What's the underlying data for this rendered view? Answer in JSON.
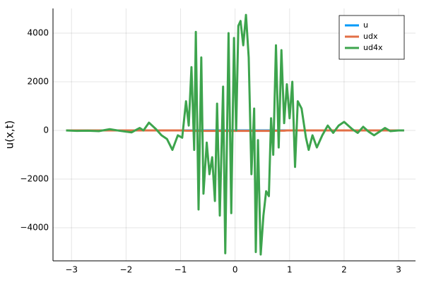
{
  "chart_data": {
    "type": "line",
    "ylabel": "u(x,t)",
    "x": [
      -3.1,
      -2.9,
      -2.7,
      -2.5,
      -2.3,
      -2.1,
      -1.9,
      -1.75,
      -1.68,
      -1.58,
      -1.45,
      -1.35,
      -1.25,
      -1.15,
      -1.05,
      -0.97,
      -0.9,
      -0.85,
      -0.8,
      -0.75,
      -0.72,
      -0.67,
      -0.62,
      -0.58,
      -0.52,
      -0.47,
      -0.42,
      -0.37,
      -0.33,
      -0.28,
      -0.22,
      -0.18,
      -0.12,
      -0.07,
      -0.02,
      0.02,
      0.06,
      0.1,
      0.15,
      0.2,
      0.25,
      0.3,
      0.35,
      0.38,
      0.42,
      0.47,
      0.52,
      0.57,
      0.62,
      0.66,
      0.7,
      0.75,
      0.8,
      0.85,
      0.9,
      0.95,
      1.0,
      1.05,
      1.1,
      1.15,
      1.22,
      1.3,
      1.35,
      1.42,
      1.5,
      1.6,
      1.7,
      1.8,
      1.9,
      2.0,
      2.15,
      2.25,
      2.35,
      2.45,
      2.55,
      2.65,
      2.75,
      2.85,
      3.0,
      3.1
    ],
    "series": [
      {
        "name": "u",
        "color": "#009af9",
        "values": [
          0,
          0,
          0,
          0,
          0,
          0,
          0,
          0,
          0,
          0,
          0,
          0,
          0,
          0,
          0,
          0,
          0,
          0,
          0,
          0,
          0,
          0,
          0,
          0,
          0,
          0,
          0,
          0,
          0,
          0,
          0,
          0,
          0,
          0,
          0,
          0,
          0,
          0,
          0,
          0,
          0,
          0,
          0,
          0,
          0,
          0,
          0,
          0,
          0,
          0,
          0,
          0,
          0,
          0,
          0,
          0,
          0,
          0,
          0,
          0,
          0,
          0,
          0,
          0,
          0,
          0,
          0,
          0,
          0,
          0,
          0,
          0,
          0,
          0,
          0,
          0,
          0,
          0,
          0,
          0
        ]
      },
      {
        "name": "udx",
        "color": "#e26f46",
        "values": [
          0,
          0,
          0,
          0,
          0,
          0,
          0,
          0,
          0,
          0,
          0,
          0,
          0,
          0,
          0,
          0,
          -10,
          -10,
          -10,
          -10,
          -20,
          -20,
          -20,
          -20,
          -20,
          -20,
          -20,
          -20,
          -20,
          -20,
          -20,
          -20,
          -20,
          -20,
          -20,
          -20,
          -20,
          -20,
          -20,
          -20,
          -20,
          -20,
          -20,
          -20,
          -20,
          -20,
          -20,
          -20,
          -20,
          -20,
          -10,
          -10,
          -10,
          -10,
          -10,
          0,
          0,
          0,
          0,
          0,
          0,
          0,
          0,
          0,
          0,
          0,
          0,
          0,
          0,
          0,
          0,
          0,
          0,
          0,
          0,
          0,
          0,
          0,
          0,
          0
        ]
      },
      {
        "name": "ud4x",
        "color": "#3da44d",
        "values": [
          0,
          -20,
          -10,
          -30,
          50,
          -20,
          -80,
          100,
          0,
          320,
          50,
          -200,
          -350,
          -800,
          -200,
          -300,
          1200,
          200,
          2600,
          -800,
          4050,
          -3250,
          3000,
          -2600,
          -500,
          -1800,
          -1100,
          -2900,
          1100,
          -3500,
          1800,
          -5050,
          4000,
          -3400,
          3800,
          0,
          4300,
          4500,
          3500,
          4750,
          3000,
          -1800,
          900,
          -5000,
          -400,
          -5100,
          -3500,
          -2500,
          -2700,
          500,
          -1000,
          3500,
          -700,
          3300,
          300,
          1900,
          500,
          2000,
          -1500,
          1200,
          900,
          -300,
          -800,
          -200,
          -700,
          -200,
          200,
          -100,
          200,
          350,
          50,
          -100,
          150,
          -50,
          -200,
          -50,
          100,
          -30,
          0,
          0
        ]
      }
    ],
    "xlim": [
      -3.34,
      3.31
    ],
    "xticks": [
      {
        "value": -3,
        "label": "−3"
      },
      {
        "value": -2,
        "label": "−2"
      },
      {
        "value": -1,
        "label": "−1"
      },
      0,
      1,
      2,
      3
    ],
    "ylim": [
      -5362,
      5014
    ],
    "yticks": [
      {
        "value": -4000,
        "label": "−4000"
      },
      {
        "value": -2000,
        "label": "−2000"
      },
      0,
      2000,
      4000
    ],
    "grid": true,
    "legend": "top-right"
  }
}
